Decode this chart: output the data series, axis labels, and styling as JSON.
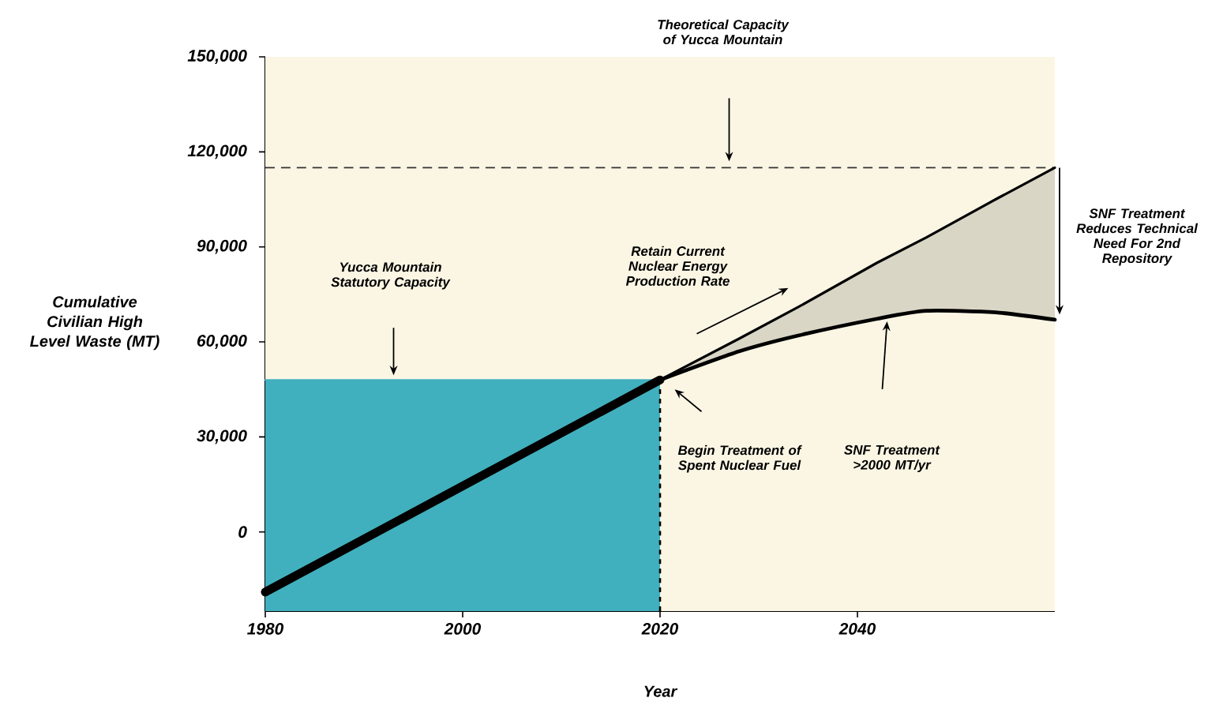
{
  "chart_data": {
    "type": "line",
    "xlabel": "Year",
    "ylabel": "Cumulative Civilian High Level Waste (MT)",
    "xlim": [
      1980,
      2060
    ],
    "ylim": [
      -25000,
      150000
    ],
    "xticks": [
      1980,
      2000,
      2020,
      2040
    ],
    "yticks": [
      0,
      {
        "value": 30000,
        "label": "30,000"
      },
      {
        "value": 60000,
        "label": "60,000"
      },
      {
        "value": 90000,
        "label": "90,000"
      },
      {
        "value": 120000,
        "label": "120,000"
      },
      {
        "value": 150000,
        "label": "150,000"
      }
    ],
    "series": [
      {
        "x": [
          1980,
          2020
        ],
        "values": [
          48000,
          48000
        ],
        "lower": [
          -25000,
          -25000
        ],
        "upper": [
          48000,
          48000
        ],
        "color": "#41b0be"
      },
      {
        "x": [
          1980,
          2020
        ],
        "values": [
          -19000,
          48000
        ],
        "color": "#000000"
      },
      {
        "x": [
          2020,
          2028,
          2034,
          2042,
          2047,
          2054,
          2060
        ],
        "values": [
          48000,
          61000,
          71000,
          85000,
          93000,
          105000,
          115000
        ],
        "lower": [
          48000,
          57000,
          62000,
          67000,
          70000,
          69000,
          67000
        ],
        "upper": [
          48000,
          61000,
          71000,
          85000,
          93000,
          105000,
          115000
        ],
        "color": "#000000"
      },
      {
        "x": [
          2020,
          2028,
          2034,
          2042,
          2047,
          2054,
          2060
        ],
        "values": [
          48000,
          57000,
          62000,
          67300,
          69800,
          69300,
          67000
        ],
        "color": "#000000"
      }
    ],
    "ref_lines": [
      {
        "axis": "y",
        "value": 115000,
        "line_style": "dashed",
        "color": "#333333"
      },
      {
        "axis": "x",
        "value": 2020,
        "line_style": "dashed",
        "color": "#000000"
      }
    ],
    "annotations": [
      "Theoretical Capacity of Yucca Mountain",
      "Yucca Mountain Statutory Capacity",
      "Retain Current Nuclear Energy Production Rate",
      "SNF Treatment Reduces Technical Need For 2nd Repository",
      "SNF Treatment >2000 MT/yr",
      "Begin Treatment of Spent Nuclear Fuel"
    ],
    "grid": false,
    "marker": "none"
  }
}
